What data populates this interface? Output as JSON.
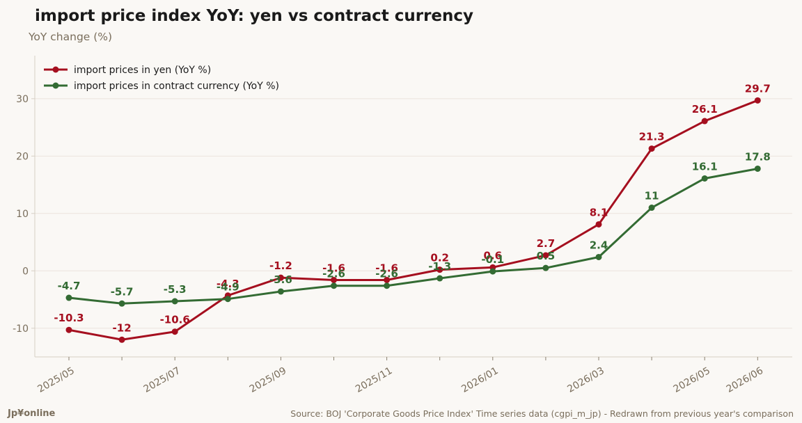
{
  "page": {
    "title": "import price index YoY: yen vs contract currency",
    "brand": "Jp¥online",
    "source": "Source: BOJ 'Corporate Goods Price Index' Time series data (cgpi_m_jp) - Redrawn from previous year's comparison"
  },
  "chart_data": {
    "type": "line",
    "title": "import price index YoY: yen vs contract currency",
    "ylabel": "YoY change (%)",
    "xlabel": "",
    "x": [
      "2025/05",
      "2025/06",
      "2025/07",
      "2025/08",
      "2025/09",
      "2025/10",
      "2025/11",
      "2025/12",
      "2026/01",
      "2026/02",
      "2026/03",
      "2026/04",
      "2026/05",
      "2026/06"
    ],
    "x_tick_labels": [
      "2025/05",
      "",
      "2025/07",
      "",
      "2025/09",
      "",
      "2025/11",
      "",
      "2026/01",
      "",
      "2026/03",
      "",
      "2026/05",
      "2026/06"
    ],
    "ylim": [
      -15,
      37.5
    ],
    "yticks": [
      -10,
      0,
      10,
      20,
      30
    ],
    "grid": "horizontal",
    "legend": "top-left",
    "series": [
      {
        "name": "import prices in yen (YoY %)",
        "color": "#a50f1f",
        "values": [
          -10.3,
          -12,
          -10.6,
          -4.3,
          -1.2,
          -1.6,
          -1.6,
          0.2,
          0.6,
          2.7,
          8.1,
          21.3,
          26.1,
          29.7
        ]
      },
      {
        "name": "import prices in contract currency (YoY %)",
        "color": "#336b33",
        "values": [
          -4.7,
          -5.7,
          -5.3,
          -4.9,
          -3.6,
          -2.6,
          -2.6,
          -1.3,
          -0.1,
          0.5,
          2.4,
          11,
          16.1,
          17.8
        ]
      }
    ]
  }
}
